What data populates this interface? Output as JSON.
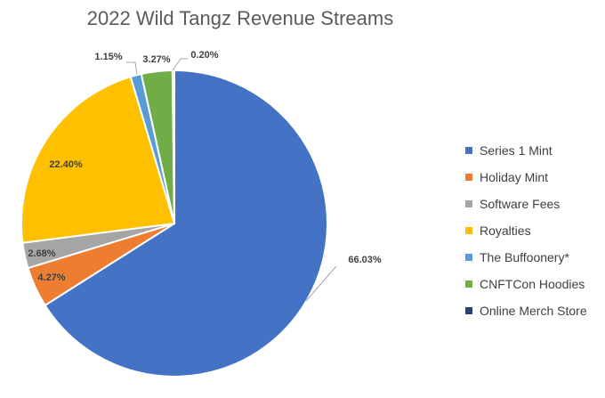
{
  "chart_data": {
    "type": "pie",
    "title": "2022 Wild Tangz Revenue Streams",
    "legend_position": "right",
    "categories": [
      "Series 1 Mint",
      "Holiday Mint",
      "Software Fees",
      "Royalties",
      "The Buffoonery*",
      "CNFTCon Hoodies",
      "Online Merch Store"
    ],
    "values": [
      66.03,
      4.27,
      2.68,
      22.4,
      1.15,
      3.27,
      0.2
    ],
    "labels": [
      "66.03%",
      "4.27%",
      "2.68%",
      "22.40%",
      "1.15%",
      "3.27%",
      "0.20%"
    ],
    "colors": [
      "#4472C4",
      "#ED7D31",
      "#A5A5A5",
      "#FFC000",
      "#5B9BD5",
      "#70AD47",
      "#264478"
    ]
  }
}
